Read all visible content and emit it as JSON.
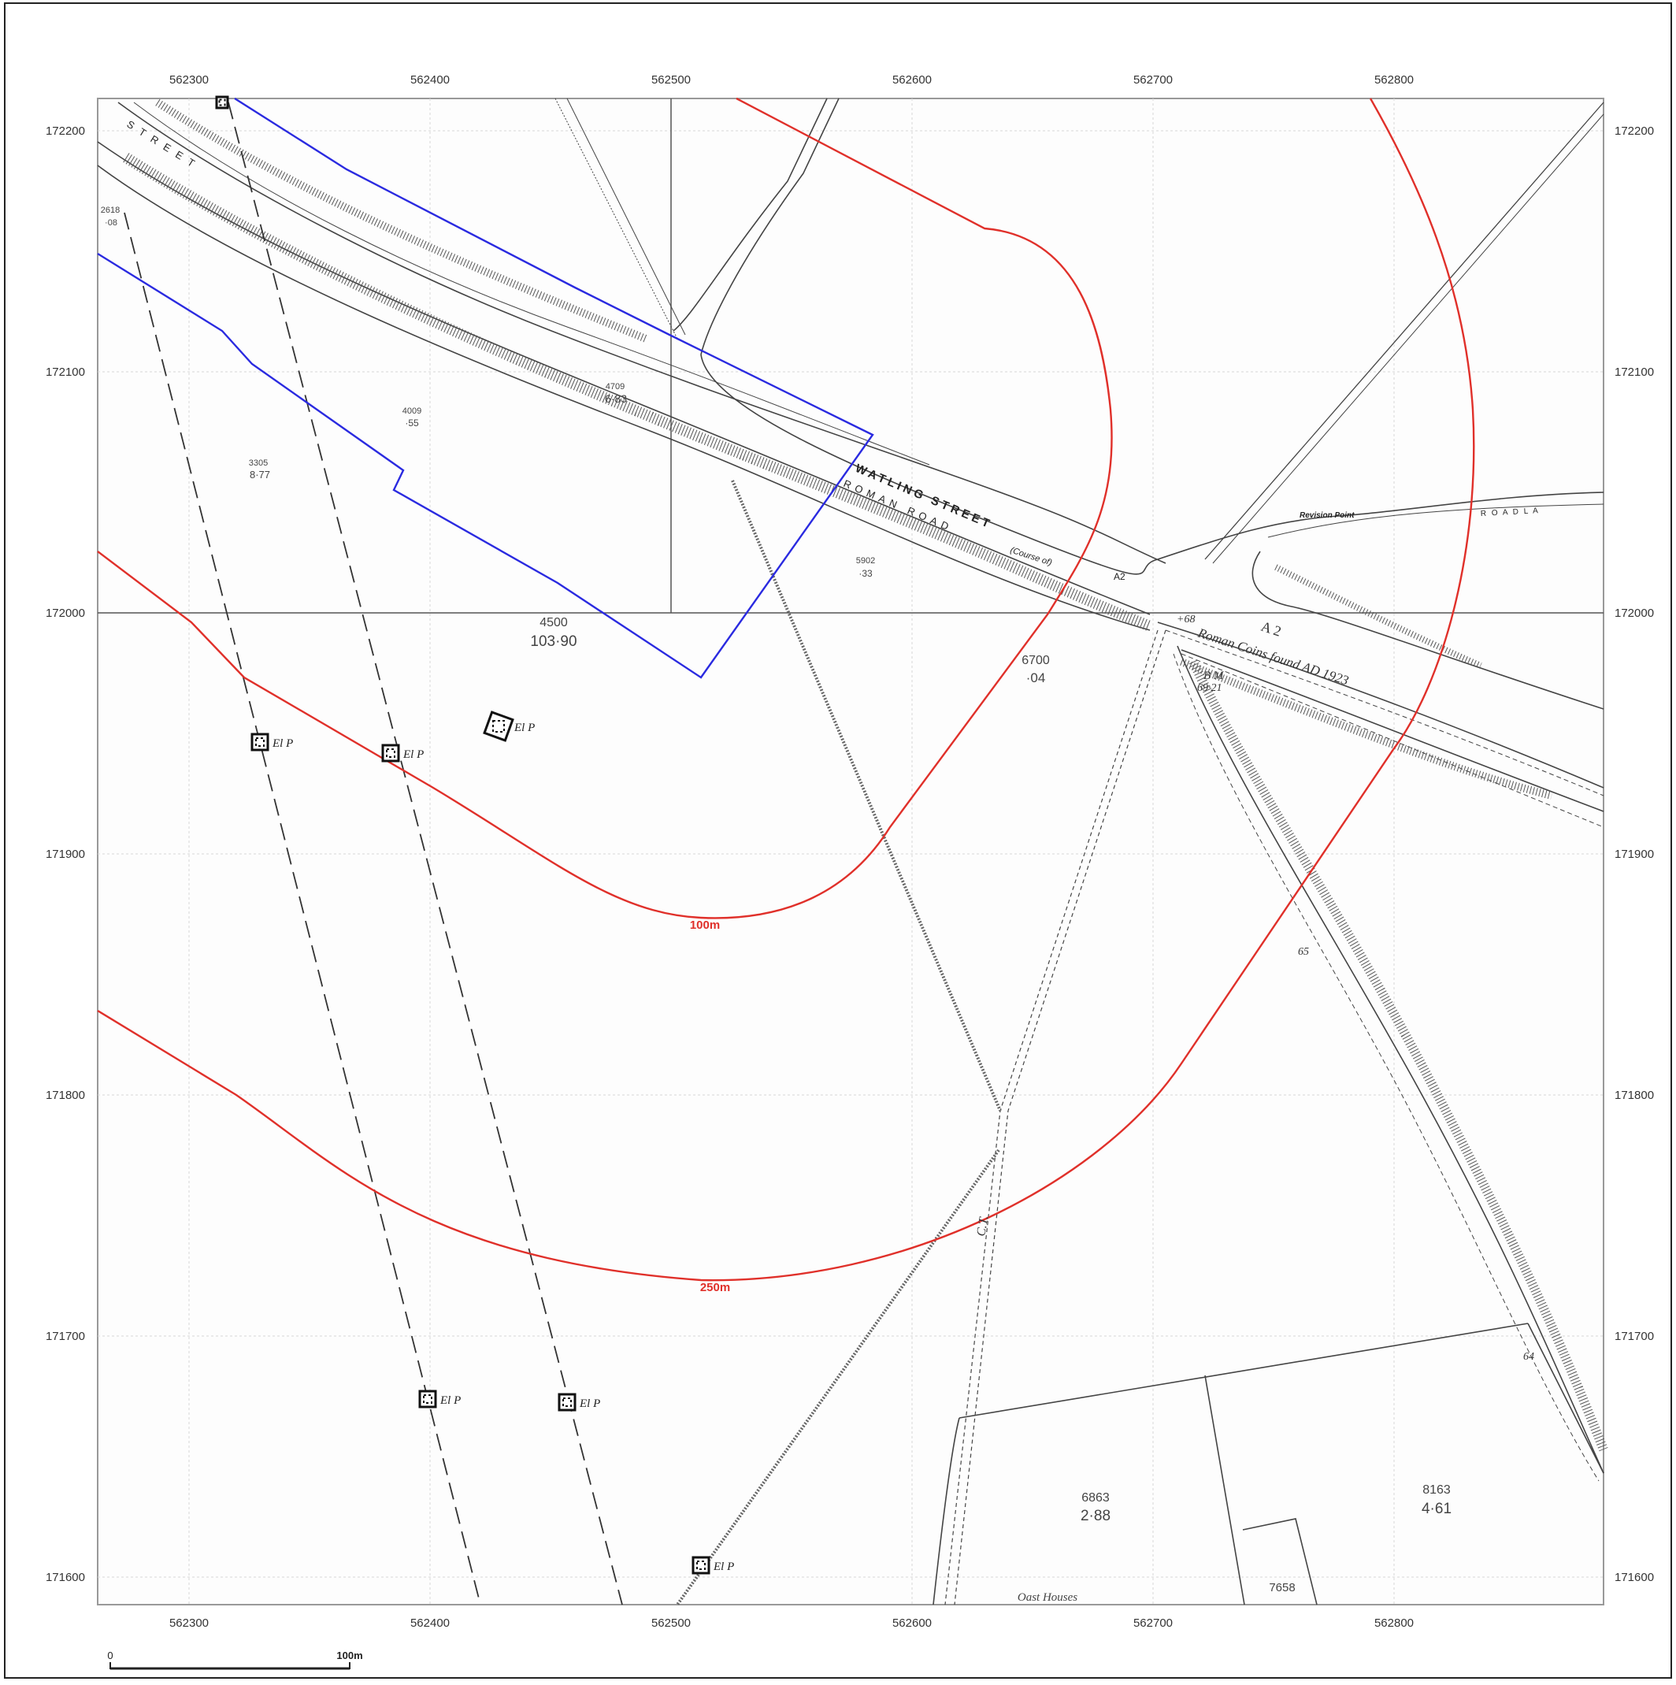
{
  "map": {
    "grid_eastings": [
      "562300",
      "562400",
      "562500",
      "562600",
      "562700",
      "562800"
    ],
    "grid_northings": [
      "172200",
      "172100",
      "172000",
      "171900",
      "171800",
      "171700",
      "171600"
    ],
    "buffers": [
      {
        "label": "100m",
        "color": "#e0302a"
      },
      {
        "label": "250m",
        "color": "#e0302a"
      }
    ],
    "site_boundary_color": "#2a2ae0",
    "road_labels": {
      "watling_street": "WATLING STREET",
      "roman_road": "ROMAN ROAD",
      "course_of": "(Course of)",
      "a2_small": "A2",
      "a2": "A 2",
      "street_nw": "S T R E E T",
      "revision_point": "Revision Point",
      "lane": "R O A D   L A"
    },
    "parcels": [
      {
        "id": "4500",
        "area": "103·90"
      },
      {
        "id": "3305",
        "area": "8·77"
      },
      {
        "id": "4009",
        "area": "·55"
      },
      {
        "id": "4709",
        "area": "6·83"
      },
      {
        "id": "5902",
        "area": "·33"
      },
      {
        "id": "6700",
        "area": "·04"
      },
      {
        "id": "2618",
        "area": "·08"
      },
      {
        "id": "6863",
        "area": "2·88"
      },
      {
        "id": "8163",
        "area": "4·61"
      },
      {
        "id": "7658",
        "area": ""
      }
    ],
    "annotations": {
      "roman_coins": "Roman Coins found AD 1923",
      "bench_mark": "B M",
      "bench_mark_value": "69·21",
      "spot_68": "+68",
      "spot_65": "65",
      "spot_64": "64",
      "oast_houses": "Oast Houses",
      "ct": "C.T.",
      "el_p": "El P"
    },
    "scale_bar": {
      "start": "0",
      "end": "100m"
    }
  }
}
